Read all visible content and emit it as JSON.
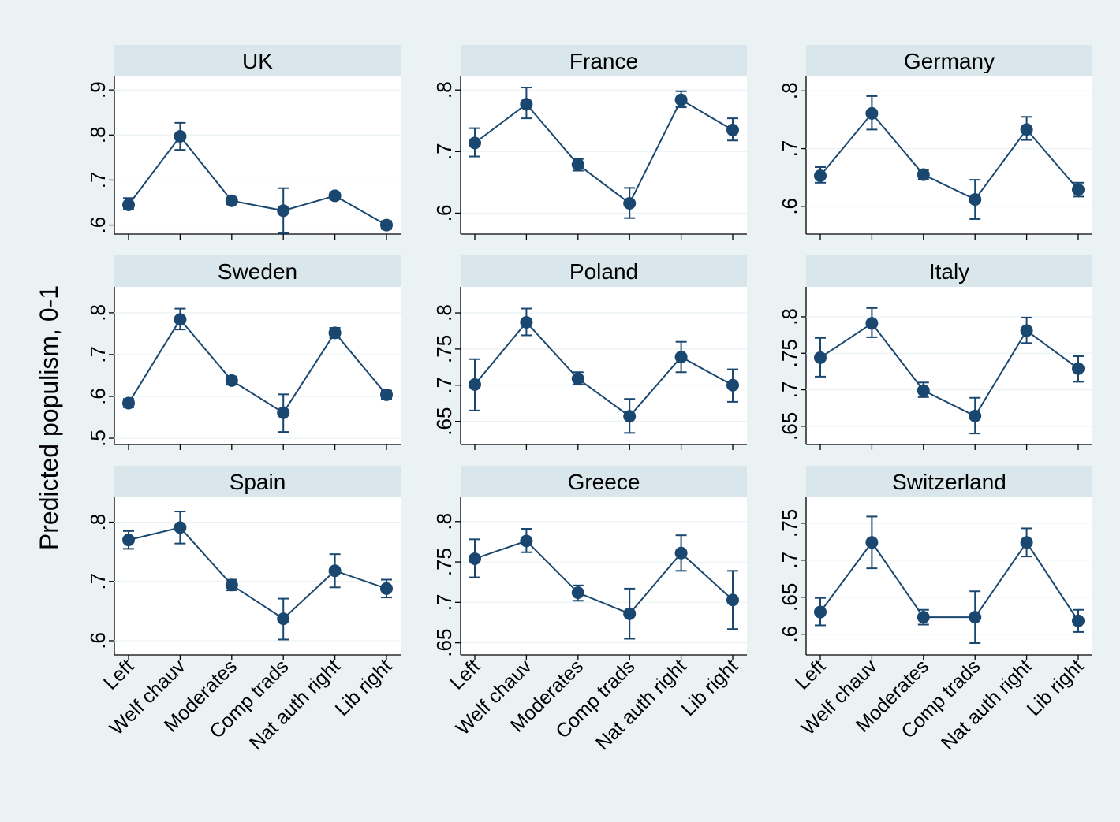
{
  "figure": {
    "ylabel": "Predicted populism, 0-1",
    "categories": [
      "Left",
      "Welf chauv",
      "Moderates",
      "Comp trads",
      "Nat auth right",
      "Lib right"
    ],
    "colors": {
      "outer_bg": "#eaf2f3",
      "plot_bg": "#ffffff",
      "strip_bg": "#d9e6eb",
      "series": "#1a476f"
    }
  },
  "chart_data": [
    {
      "type": "line",
      "title": "UK",
      "ylim": [
        0.58,
        0.93
      ],
      "ticks": [
        0.6,
        0.7,
        0.8,
        0.9
      ],
      "tick_labels": [
        ".6",
        ".7",
        ".8",
        ".9"
      ],
      "values": [
        0.645,
        0.797,
        0.654,
        0.632,
        0.665,
        0.6
      ],
      "lower": [
        0.635,
        0.767,
        0.646,
        0.582,
        0.657,
        0.591
      ],
      "upper": [
        0.66,
        0.827,
        0.661,
        0.682,
        0.673,
        0.609
      ]
    },
    {
      "type": "line",
      "title": "France",
      "ylim": [
        0.566,
        0.822
      ],
      "ticks": [
        0.6,
        0.7,
        0.8
      ],
      "tick_labels": [
        ".6",
        ".7",
        ".8"
      ],
      "values": [
        0.714,
        0.777,
        0.679,
        0.616,
        0.784,
        0.735
      ],
      "lower": [
        0.692,
        0.754,
        0.669,
        0.592,
        0.772,
        0.718
      ],
      "upper": [
        0.738,
        0.804,
        0.688,
        0.641,
        0.798,
        0.754
      ]
    },
    {
      "type": "line",
      "title": "Germany",
      "ylim": [
        0.552,
        0.825
      ],
      "ticks": [
        0.6,
        0.7,
        0.8
      ],
      "tick_labels": [
        ".6",
        ".7",
        ".8"
      ],
      "values": [
        0.653,
        0.761,
        0.655,
        0.612,
        0.733,
        0.629
      ],
      "lower": [
        0.641,
        0.733,
        0.647,
        0.578,
        0.715,
        0.617
      ],
      "upper": [
        0.668,
        0.791,
        0.663,
        0.646,
        0.755,
        0.641
      ]
    },
    {
      "type": "line",
      "title": "Sweden",
      "ylim": [
        0.485,
        0.862
      ],
      "ticks": [
        0.5,
        0.6,
        0.7,
        0.8
      ],
      "tick_labels": [
        ".5",
        ".6",
        ".7",
        ".8"
      ],
      "values": [
        0.584,
        0.784,
        0.638,
        0.561,
        0.752,
        0.604
      ],
      "lower": [
        0.574,
        0.76,
        0.628,
        0.515,
        0.74,
        0.594
      ],
      "upper": [
        0.594,
        0.81,
        0.648,
        0.605,
        0.764,
        0.614
      ]
    },
    {
      "type": "line",
      "title": "Poland",
      "ylim": [
        0.618,
        0.836
      ],
      "ticks": [
        0.65,
        0.7,
        0.75,
        0.8
      ],
      "tick_labels": [
        ".65",
        ".7",
        ".75",
        ".8"
      ],
      "values": [
        0.701,
        0.787,
        0.709,
        0.657,
        0.739,
        0.7
      ],
      "lower": [
        0.665,
        0.769,
        0.701,
        0.634,
        0.718,
        0.677
      ],
      "upper": [
        0.736,
        0.806,
        0.718,
        0.681,
        0.76,
        0.722
      ]
    },
    {
      "type": "line",
      "title": "Italy",
      "ylim": [
        0.625,
        0.841
      ],
      "ticks": [
        0.65,
        0.7,
        0.75,
        0.8
      ],
      "tick_labels": [
        ".65",
        ".7",
        ".75",
        ".8"
      ],
      "values": [
        0.744,
        0.791,
        0.699,
        0.664,
        0.781,
        0.729
      ],
      "lower": [
        0.718,
        0.772,
        0.69,
        0.64,
        0.764,
        0.711
      ],
      "upper": [
        0.771,
        0.812,
        0.71,
        0.689,
        0.799,
        0.746
      ]
    },
    {
      "type": "line",
      "title": "Spain",
      "ylim": [
        0.576,
        0.842
      ],
      "ticks": [
        0.6,
        0.7,
        0.8
      ],
      "tick_labels": [
        ".6",
        ".7",
        ".8"
      ],
      "values": [
        0.77,
        0.791,
        0.694,
        0.637,
        0.718,
        0.688
      ],
      "lower": [
        0.755,
        0.764,
        0.685,
        0.602,
        0.69,
        0.673
      ],
      "upper": [
        0.785,
        0.818,
        0.703,
        0.671,
        0.746,
        0.703
      ]
    },
    {
      "type": "line",
      "title": "Greece",
      "ylim": [
        0.635,
        0.83
      ],
      "ticks": [
        0.65,
        0.7,
        0.75,
        0.8
      ],
      "tick_labels": [
        ".65",
        ".7",
        ".75",
        ".8"
      ],
      "values": [
        0.754,
        0.776,
        0.712,
        0.686,
        0.761,
        0.703
      ],
      "lower": [
        0.731,
        0.762,
        0.702,
        0.655,
        0.739,
        0.667
      ],
      "upper": [
        0.778,
        0.791,
        0.721,
        0.717,
        0.783,
        0.739
      ]
    },
    {
      "type": "line",
      "title": "Switzerland",
      "ylim": [
        0.572,
        0.785
      ],
      "ticks": [
        0.6,
        0.65,
        0.7,
        0.75
      ],
      "tick_labels": [
        ".6",
        ".65",
        ".7",
        ".75"
      ],
      "values": [
        0.63,
        0.724,
        0.623,
        0.623,
        0.724,
        0.618
      ],
      "lower": [
        0.612,
        0.689,
        0.613,
        0.588,
        0.705,
        0.603
      ],
      "upper": [
        0.649,
        0.759,
        0.633,
        0.658,
        0.743,
        0.633
      ]
    }
  ]
}
